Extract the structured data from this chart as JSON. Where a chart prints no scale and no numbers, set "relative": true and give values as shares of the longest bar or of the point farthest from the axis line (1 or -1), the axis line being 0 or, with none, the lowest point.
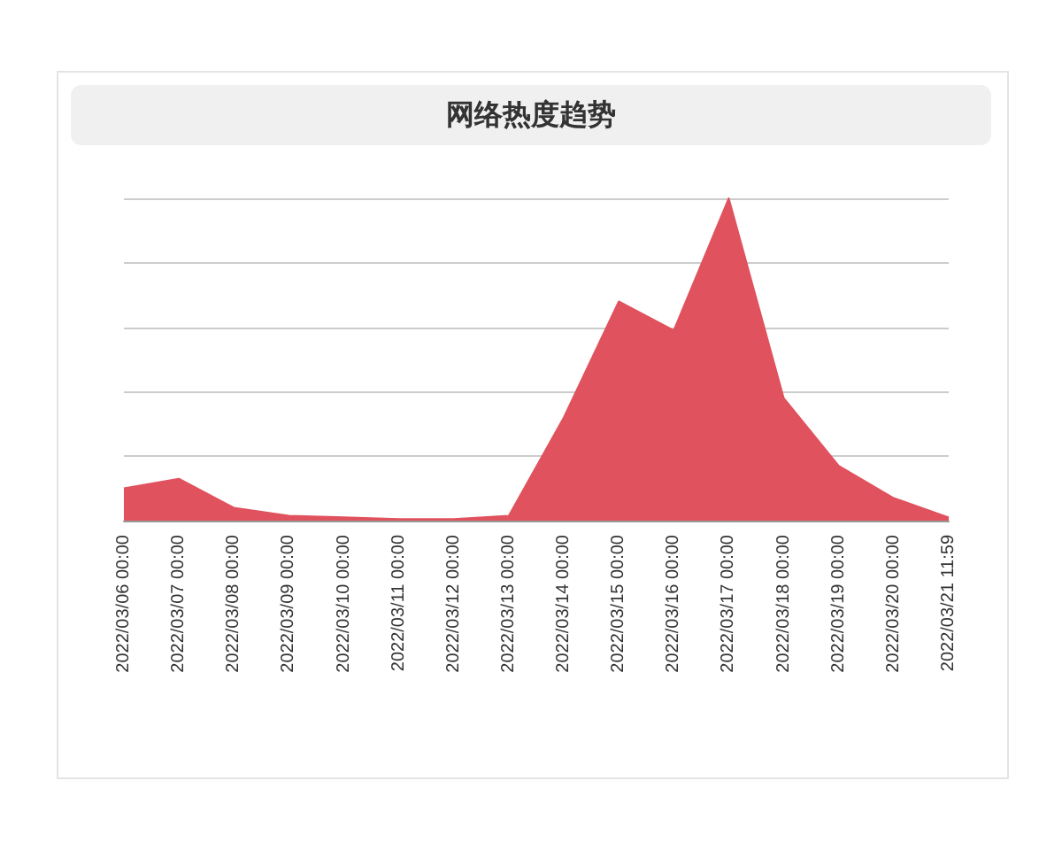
{
  "chart_data": {
    "type": "area",
    "title": "网络热度趋势",
    "relative": true,
    "grid": "y",
    "marker": "none",
    "categories": [
      "2022/03/06 00:00",
      "2022/03/07 00:00",
      "2022/03/08 00:00",
      "2022/03/09 00:00",
      "2022/03/10 00:00",
      "2022/03/11 00:00",
      "2022/03/12 00:00",
      "2022/03/13 00:00",
      "2022/03/14 00:00",
      "2022/03/15 00:00",
      "2022/03/16 00:00",
      "2022/03/17 00:00",
      "2022/03/18 00:00",
      "2022/03/19 00:00",
      "2022/03/20 00:00",
      "2022/03/21 11:59"
    ],
    "series": [
      {
        "color": "#e0525e",
        "values": [
          0.1,
          0.13,
          0.04,
          0.015,
          0.01,
          0.005,
          0.005,
          0.015,
          0.32,
          0.68,
          0.59,
          1,
          0.38,
          0.17,
          0.07,
          0.01
        ]
      }
    ]
  }
}
